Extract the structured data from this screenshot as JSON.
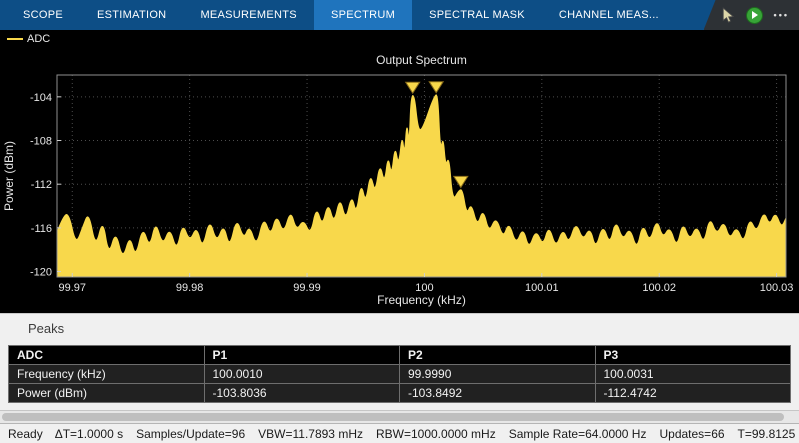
{
  "window": {
    "tabs": [
      {
        "label": "SCOPE",
        "active": false
      },
      {
        "label": "ESTIMATION",
        "active": false
      },
      {
        "label": "MEASUREMENTS",
        "active": false
      },
      {
        "label": "SPECTRUM",
        "active": true
      },
      {
        "label": "SPECTRAL MASK",
        "active": false
      },
      {
        "label": "CHANNEL MEAS...",
        "active": false
      }
    ],
    "toolbar": {
      "more_glyph": "•••"
    }
  },
  "legend": {
    "label": "ADC",
    "color": "#f8d84b"
  },
  "chart_data": {
    "type": "area",
    "title": "Output Spectrum",
    "xlabel": "Frequency (kHz)",
    "ylabel": "Power (dBm)",
    "xlim": [
      99.9687,
      100.0308
    ],
    "ylim": [
      -120.5,
      -102
    ],
    "xticks": [
      99.97,
      99.98,
      99.99,
      100,
      100.01,
      100.02,
      100.03
    ],
    "xtick_labels": [
      "99.97",
      "99.98",
      "99.99",
      "100",
      "100.01",
      "100.02",
      "100.03"
    ],
    "yticks": [
      -104,
      -108,
      -112,
      -116,
      -120
    ],
    "grid": true,
    "background": "#000000",
    "series": [
      {
        "name": "ADC",
        "color": "#f8d84b",
        "points": [
          [
            99.9687,
            -116.4
          ],
          [
            99.9692,
            -115.0
          ],
          [
            99.9697,
            -114.6
          ],
          [
            99.9703,
            -117.6
          ],
          [
            99.9709,
            -115.9
          ],
          [
            99.9714,
            -114.5
          ],
          [
            99.972,
            -117.9
          ],
          [
            99.9726,
            -115.1
          ],
          [
            99.9731,
            -118.6
          ],
          [
            99.9737,
            -116.2
          ],
          [
            99.9743,
            -119.0
          ],
          [
            99.9749,
            -116.6
          ],
          [
            99.9754,
            -118.8
          ],
          [
            99.976,
            -115.8
          ],
          [
            99.9766,
            -117.9
          ],
          [
            99.9771,
            -115.3
          ],
          [
            99.9777,
            -117.7
          ],
          [
            99.9783,
            -115.9
          ],
          [
            99.9789,
            -118.2
          ],
          [
            99.9794,
            -115.5
          ],
          [
            99.98,
            -117.3
          ],
          [
            99.9806,
            -115.8
          ],
          [
            99.9811,
            -118.0
          ],
          [
            99.9817,
            -115.1
          ],
          [
            99.9823,
            -117.4
          ],
          [
            99.9829,
            -115.6
          ],
          [
            99.9834,
            -117.9
          ],
          [
            99.984,
            -115.0
          ],
          [
            99.9846,
            -117.1
          ],
          [
            99.9851,
            -115.7
          ],
          [
            99.9857,
            -117.8
          ],
          [
            99.9863,
            -114.9
          ],
          [
            99.9869,
            -116.8
          ],
          [
            99.9874,
            -114.7
          ],
          [
            99.988,
            -116.6
          ],
          [
            99.9886,
            -114.3
          ],
          [
            99.9891,
            -116.3
          ],
          [
            99.9897,
            -115.2
          ],
          [
            99.9903,
            -116.7
          ],
          [
            99.9908,
            -114.0
          ],
          [
            99.9913,
            -115.9
          ],
          [
            99.9918,
            -113.6
          ],
          [
            99.9923,
            -115.7
          ],
          [
            99.9928,
            -113.1
          ],
          [
            99.9933,
            -115.4
          ],
          [
            99.9938,
            -112.9
          ],
          [
            99.9942,
            -114.8
          ],
          [
            99.9946,
            -111.8
          ],
          [
            99.995,
            -113.8
          ],
          [
            99.9954,
            -110.9
          ],
          [
            99.9958,
            -112.9
          ],
          [
            99.9962,
            -110.0
          ],
          [
            99.9966,
            -112.0
          ],
          [
            99.9969,
            -109.3
          ],
          [
            99.9972,
            -111.3
          ],
          [
            99.9975,
            -108.4
          ],
          [
            99.9978,
            -110.4
          ],
          [
            99.9981,
            -107.4
          ],
          [
            99.9983,
            -109.4
          ],
          [
            99.9985,
            -106.2
          ],
          [
            99.9987,
            -108.4
          ],
          [
            99.99885,
            -103.9
          ],
          [
            99.99915,
            -103.85
          ],
          [
            99.99945,
            -106.9
          ],
          [
            99.9998,
            -107.1
          ],
          [
            100.00085,
            -103.83
          ],
          [
            100.00115,
            -103.8
          ],
          [
            100.00135,
            -109.0
          ],
          [
            100.0016,
            -107.6
          ],
          [
            100.0018,
            -110.4
          ],
          [
            100.0021,
            -109.4
          ],
          [
            100.0024,
            -113.6
          ],
          [
            100.00295,
            -112.52
          ],
          [
            100.00325,
            -112.5
          ],
          [
            100.0036,
            -114.8
          ],
          [
            100.004,
            -113.7
          ],
          [
            100.0045,
            -115.9
          ],
          [
            100.005,
            -114.2
          ],
          [
            100.0055,
            -116.5
          ],
          [
            100.0061,
            -114.9
          ],
          [
            100.0067,
            -117.0
          ],
          [
            100.0072,
            -115.4
          ],
          [
            100.0078,
            -117.6
          ],
          [
            100.0084,
            -115.9
          ],
          [
            100.0089,
            -118.0
          ],
          [
            100.0095,
            -116.1
          ],
          [
            100.0101,
            -117.7
          ],
          [
            100.0106,
            -115.7
          ],
          [
            100.0112,
            -117.9
          ],
          [
            100.0118,
            -116.0
          ],
          [
            100.0123,
            -117.5
          ],
          [
            100.0129,
            -115.4
          ],
          [
            100.0135,
            -117.2
          ],
          [
            100.0141,
            -115.9
          ],
          [
            100.0146,
            -118.0
          ],
          [
            100.0152,
            -115.6
          ],
          [
            100.0158,
            -117.6
          ],
          [
            100.0163,
            -115.2
          ],
          [
            100.0169,
            -117.2
          ],
          [
            100.0175,
            -115.9
          ],
          [
            100.0181,
            -118.1
          ],
          [
            100.0186,
            -115.5
          ],
          [
            100.0192,
            -117.4
          ],
          [
            100.0198,
            -115.1
          ],
          [
            100.0203,
            -117.0
          ],
          [
            100.0209,
            -115.8
          ],
          [
            100.0215,
            -117.9
          ],
          [
            100.022,
            -115.4
          ],
          [
            100.0226,
            -117.2
          ],
          [
            100.0232,
            -115.7
          ],
          [
            100.0238,
            -117.6
          ],
          [
            100.0243,
            -114.9
          ],
          [
            100.0249,
            -116.7
          ],
          [
            100.0255,
            -115.3
          ],
          [
            100.026,
            -117.1
          ],
          [
            100.0266,
            -115.8
          ],
          [
            100.0272,
            -117.5
          ],
          [
            100.0277,
            -115.0
          ],
          [
            100.0283,
            -116.5
          ],
          [
            100.0289,
            -114.4
          ],
          [
            100.0294,
            -115.8
          ],
          [
            100.0299,
            -114.5
          ],
          [
            100.0304,
            -116.0
          ],
          [
            100.0308,
            -115.1
          ]
        ]
      }
    ],
    "peaks": [
      {
        "name": "P1",
        "frequency_khz": 100.001,
        "power_dbm": -103.8036
      },
      {
        "name": "P2",
        "frequency_khz": 99.999,
        "power_dbm": -103.8492
      },
      {
        "name": "P3",
        "frequency_khz": 100.0031,
        "power_dbm": -112.4742
      }
    ]
  },
  "peaks_panel": {
    "title": "Peaks",
    "table": {
      "headers": [
        "ADC",
        "P1",
        "P2",
        "P3"
      ],
      "rows": [
        {
          "label": "Frequency (kHz)",
          "values": [
            "100.0010",
            "99.9990",
            "100.0031"
          ]
        },
        {
          "label": "Power (dBm)",
          "values": [
            "-103.8036",
            "-103.8492",
            "-112.4742"
          ]
        }
      ]
    }
  },
  "status_bar": {
    "ready": "Ready",
    "items": [
      "ΔT=1.0000 s",
      "Samples/Update=96",
      "VBW=11.7893 mHz",
      "RBW=1000.0000 mHz",
      "Sample Rate=64.0000 Hz",
      "Updates=66",
      "T=99.8125"
    ]
  }
}
